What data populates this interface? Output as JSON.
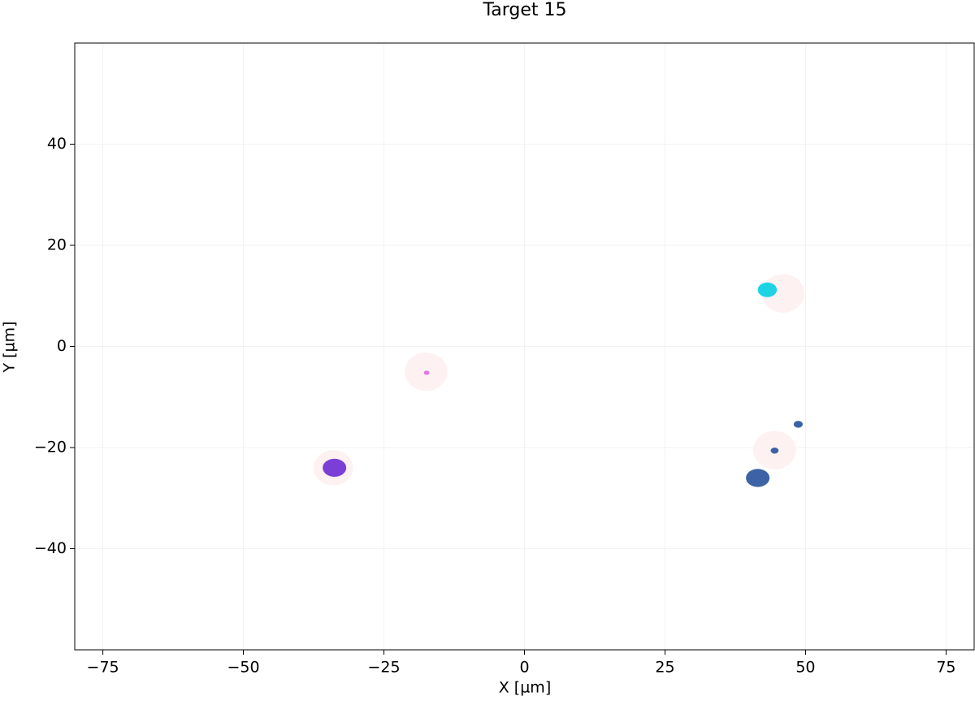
{
  "chart_data": {
    "type": "scatter",
    "title": "Target 15",
    "x_label": "X [µm]",
    "y_label": "Y [µm]",
    "xlim": [
      -80,
      80
    ],
    "ylim": [
      -60,
      60
    ],
    "xticks": [
      {
        "value": -75,
        "label": "−75"
      },
      {
        "value": -50,
        "label": "−50"
      },
      {
        "value": -25,
        "label": "−25"
      },
      0,
      25,
      50,
      75
    ],
    "yticks": [
      {
        "value": -40,
        "label": "−40"
      },
      {
        "value": -20,
        "label": "−20"
      },
      0,
      20,
      40
    ],
    "grid": true,
    "halos": {
      "color": "#fdf1f1",
      "x": [
        -17.5,
        46,
        44.5,
        -34
      ],
      "y": [
        -5,
        10.5,
        -20.5,
        -24
      ],
      "radius": [
        3.8,
        3.8,
        3.8,
        3.5
      ]
    },
    "series": [
      {
        "color": "#1ed3e3",
        "x": [
          43.2
        ],
        "y": [
          11.2
        ],
        "size": [
          1.7
        ]
      },
      {
        "color": "#e177e0",
        "x": [
          -17.4
        ],
        "y": [
          -5.2
        ],
        "size": [
          0.5
        ]
      },
      {
        "color": "#7b3fd6",
        "x": [
          -33.8
        ],
        "y": [
          -24
        ],
        "size": [
          2.1
        ]
      },
      {
        "color": "#3b63a5",
        "x": [
          41.5,
          44.5,
          48.7
        ],
        "y": [
          -26,
          -20.6,
          -15.4
        ],
        "size": [
          2.1,
          0.7,
          0.8
        ]
      }
    ]
  }
}
